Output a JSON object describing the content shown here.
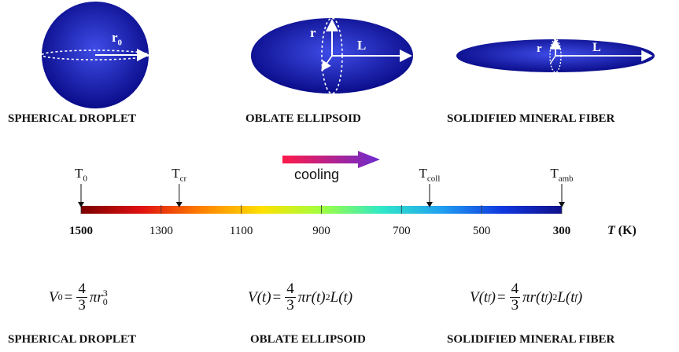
{
  "shapes": {
    "spherical": {
      "title": "SPHERICAL DROPLET",
      "radius_label": "r",
      "radius_sub": "0"
    },
    "oblate": {
      "title": "OBLATE ELLIPSOID",
      "radius_label": "r",
      "length_label": "L"
    },
    "fiber": {
      "title": "SOLIDIFIED MINERAL FIBER",
      "radius_label": "r",
      "length_label": "L"
    }
  },
  "cooling": {
    "label": "cooling"
  },
  "temperature_scale": {
    "ticks": [
      "1500",
      "1300",
      "1100",
      "900",
      "700",
      "500",
      "300"
    ],
    "unit_symbol": "T",
    "unit": "(K)",
    "min": 300,
    "max": 1500,
    "markers": [
      {
        "base": "T",
        "sub": "0",
        "value": 1500
      },
      {
        "base": "T",
        "sub": "cr",
        "value": 1255
      },
      {
        "base": "T",
        "sub": "coll",
        "value": 630
      },
      {
        "base": "T",
        "sub": "amb",
        "value": 300
      }
    ]
  },
  "formulas": {
    "spherical": {
      "lhs": "V",
      "lhs_sub": "0",
      "eq": "=",
      "num": "4",
      "den": "3",
      "rhs": "πr",
      "rhs_sub": "0",
      "rhs_sup": "3"
    },
    "oblate": {
      "lhs": "V(t)",
      "eq": "=",
      "num": "4",
      "den": "3",
      "rhs1": "πr(t)",
      "rhs_sup": "2",
      "rhs2": "L(t)"
    },
    "fiber": {
      "lhs1": "V(t",
      "lhs_sub": "f",
      "lhs2": ")",
      "eq": "=",
      "num": "4",
      "den": "3",
      "rhs1": "πr(t",
      "rhs_sub1": "f",
      "rhs2": ")",
      "rhs_sup": "2",
      "rhs3": "L(t",
      "rhs_sub2": "f",
      "rhs4": ")"
    }
  },
  "bottom_titles": {
    "spherical": "SPHERICAL DROPLET",
    "oblate": "OBLATE ELLIPSOID",
    "fiber": "SOLIDIFIED MINERAL FIBER"
  },
  "colors": {
    "shape_center": "#3f4de8",
    "shape_edge": "#0a0c8a",
    "bar_stops": [
      "#7a0000",
      "#e01010",
      "#ff8000",
      "#ffe000",
      "#a0ff40",
      "#30e8c8",
      "#20a0f0",
      "#1038e0",
      "#10108a"
    ],
    "arrow_start": "#ff1a4a",
    "arrow_end": "#6a2cd0"
  }
}
